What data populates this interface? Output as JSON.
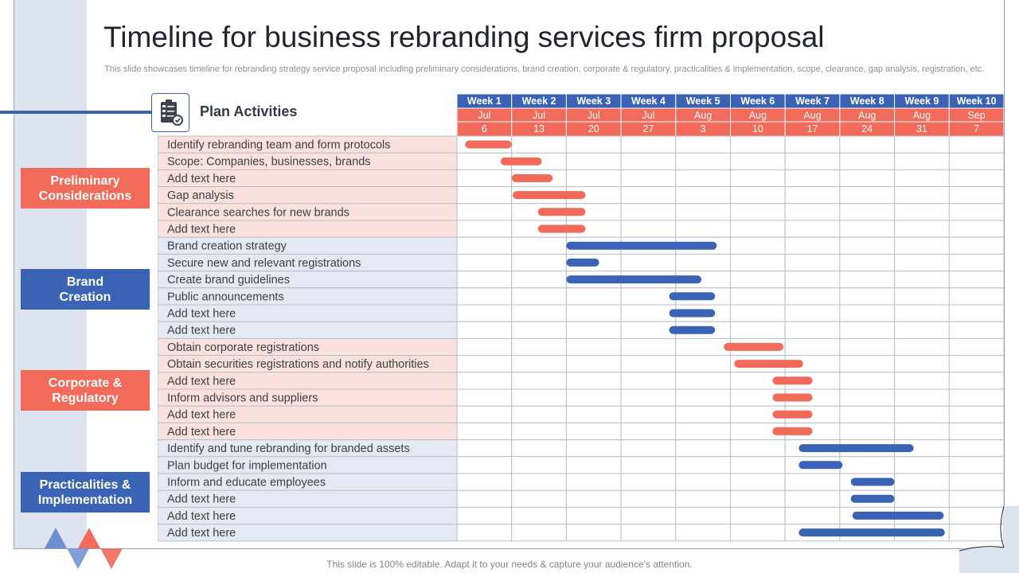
{
  "title": "Timeline for business rebranding services firm proposal",
  "subtitle": "This slide showcases timeline for rebranding strategy service proposal including preliminary considerations, brand creation, corporate & regulatory, practicalities & implementation, scope, clearance, gap analysis, registration, etc.",
  "plan_label": "Plan Activities",
  "plan_icon": "checklist-icon",
  "footer": "This slide is 100% editable. Adapt it to your needs & capture your audience’s attention.",
  "colors": {
    "red": "#f16a5a",
    "blue": "#3a63b5",
    "red_row": "#fbe1dd",
    "blue_row": "#e4e9f3"
  },
  "weeks": [
    {
      "label": "Week 1",
      "month": "Jul",
      "day": "6"
    },
    {
      "label": "Week 2",
      "month": "Jul",
      "day": "13"
    },
    {
      "label": "Week 3",
      "month": "Jul",
      "day": "20"
    },
    {
      "label": "Week 4",
      "month": "Jul",
      "day": "27"
    },
    {
      "label": "Week 5",
      "month": "Aug",
      "day": "3"
    },
    {
      "label": "Week 6",
      "month": "Aug",
      "day": "10"
    },
    {
      "label": "Week 7",
      "month": "Aug",
      "day": "17"
    },
    {
      "label": "Week 8",
      "month": "Aug",
      "day": "24"
    },
    {
      "label": "Week 9",
      "month": "Aug",
      "day": "31"
    },
    {
      "label": "Week 10",
      "month": "Sep",
      "day": "7"
    }
  ],
  "categories": [
    {
      "label": "Preliminary\nConsiderations",
      "color": "red"
    },
    {
      "label": "Brand\nCreation",
      "color": "blue"
    },
    {
      "label": "Corporate &\nRegulatory",
      "color": "red"
    },
    {
      "label": "Practicalities &\nImplementation",
      "color": "blue"
    }
  ],
  "tasks": [
    {
      "label": "Identify rebranding team and form protocols",
      "group": 0,
      "start": 1.15,
      "end": 2.0
    },
    {
      "label": "Scope: Companies, businesses, brands",
      "group": 0,
      "start": 1.8,
      "end": 2.55
    },
    {
      "label": "Add text here",
      "group": 0,
      "start": 2.0,
      "end": 2.75
    },
    {
      "label": "Gap analysis",
      "group": 0,
      "start": 2.02,
      "end": 3.35
    },
    {
      "label": "Clearance searches for new brands",
      "group": 0,
      "start": 2.48,
      "end": 3.35
    },
    {
      "label": "Add text here",
      "group": 0,
      "start": 2.48,
      "end": 3.35
    },
    {
      "label": "Brand creation strategy",
      "group": 1,
      "start": 3.0,
      "end": 5.75
    },
    {
      "label": "Secure new and relevant registrations",
      "group": 1,
      "start": 3.0,
      "end": 3.6
    },
    {
      "label": "Create brand guidelines",
      "group": 1,
      "start": 3.0,
      "end": 5.47
    },
    {
      "label": "Public announcements",
      "group": 1,
      "start": 4.88,
      "end": 5.72
    },
    {
      "label": "Add text here",
      "group": 1,
      "start": 4.88,
      "end": 5.72
    },
    {
      "label": "Add text here",
      "group": 1,
      "start": 4.88,
      "end": 5.72
    },
    {
      "label": "Obtain corporate registrations",
      "group": 2,
      "start": 5.88,
      "end": 6.97
    },
    {
      "label": "Obtain securities registrations and notify authorities",
      "group": 2,
      "start": 6.07,
      "end": 7.33
    },
    {
      "label": "Add text here",
      "group": 2,
      "start": 6.77,
      "end": 7.5
    },
    {
      "label": "Inform advisors and suppliers",
      "group": 2,
      "start": 6.77,
      "end": 7.5
    },
    {
      "label": "Add text here",
      "group": 2,
      "start": 6.77,
      "end": 7.5
    },
    {
      "label": "Add text here",
      "group": 2,
      "start": 6.77,
      "end": 7.5
    },
    {
      "label": "Identify and tune rebranding for branded assets",
      "group": 3,
      "start": 7.25,
      "end": 9.35
    },
    {
      "label": "Plan budget for implementation",
      "group": 3,
      "start": 7.25,
      "end": 8.05
    },
    {
      "label": "Inform and educate employees",
      "group": 3,
      "start": 8.2,
      "end": 9.0
    },
    {
      "label": "Add text here",
      "group": 3,
      "start": 8.2,
      "end": 9.0
    },
    {
      "label": "Add text here",
      "group": 3,
      "start": 8.23,
      "end": 9.9
    },
    {
      "label": "Add text here",
      "group": 3,
      "start": 7.25,
      "end": 9.92
    }
  ]
}
